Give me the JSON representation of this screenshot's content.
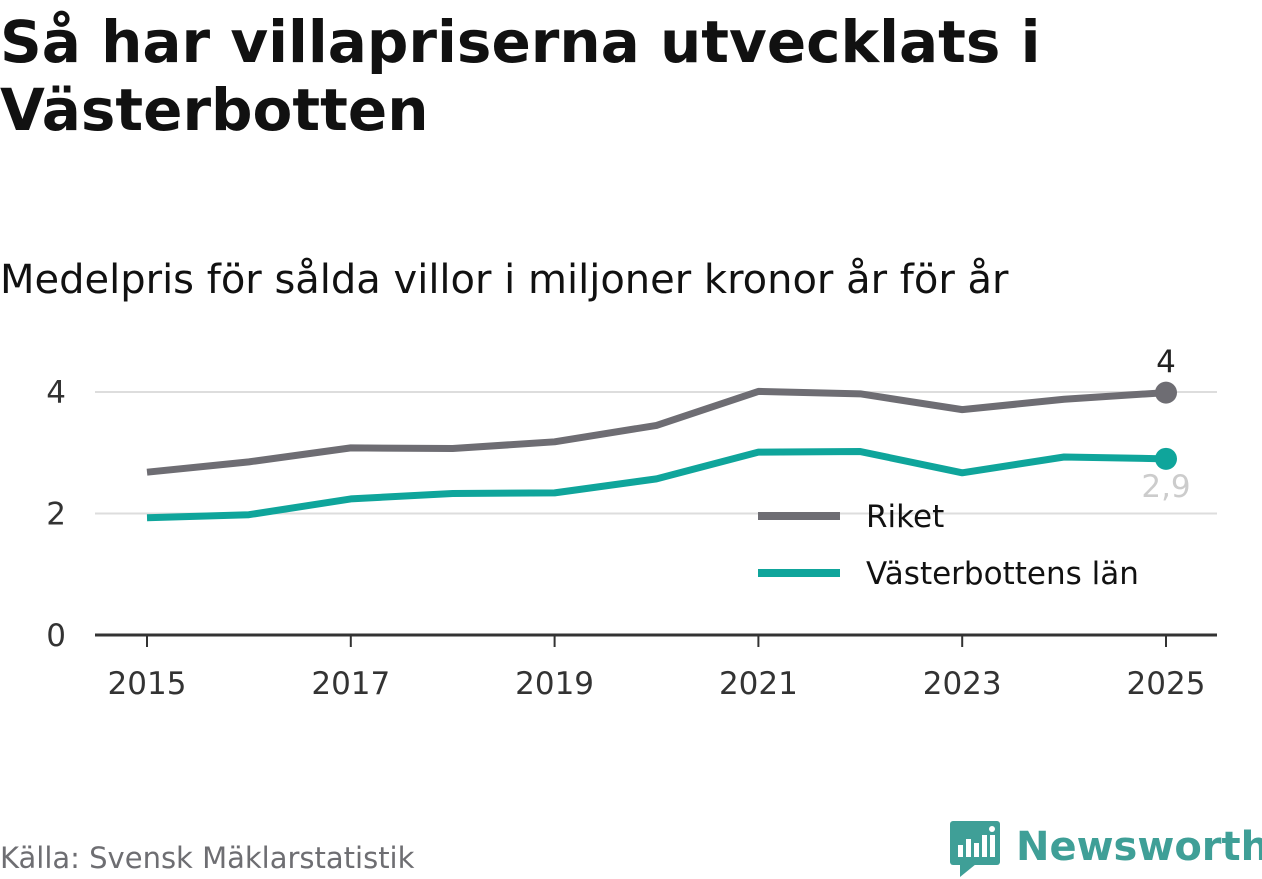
{
  "header": {
    "title": "Så har villapriserna utvecklats i Västerbotten",
    "subtitle": "Medelpris för sålda villor i miljoner kronor år för år"
  },
  "footer": {
    "source": "Källa: Svensk Mäklarstatistik",
    "brand": "Newsworthy"
  },
  "colors": {
    "riket": "#6e6d73",
    "lan": "#0fa59b",
    "grid": "#dddddd",
    "axis": "#333333",
    "brand": "#3f9f97"
  },
  "chart_data": {
    "type": "line",
    "x": [
      2015,
      2016,
      2017,
      2018,
      2019,
      2020,
      2021,
      2022,
      2023,
      2024,
      2025
    ],
    "x_ticks": [
      "2015",
      "2017",
      "2019",
      "2021",
      "2023",
      "2025"
    ],
    "y_ticks": [
      "0",
      "2",
      "4"
    ],
    "ylim": [
      0,
      4.4
    ],
    "grid": "horizontal",
    "legend_position": "bottom-right",
    "series": [
      {
        "name": "Riket",
        "color": "#6e6d73",
        "values": [
          2.68,
          2.85,
          3.08,
          3.07,
          3.18,
          3.45,
          4.01,
          3.97,
          3.71,
          3.88,
          3.99
        ],
        "end_label": "4"
      },
      {
        "name": "Västerbottens län",
        "color": "#0fa59b",
        "values": [
          1.93,
          1.98,
          2.24,
          2.33,
          2.34,
          2.57,
          3.01,
          3.02,
          2.67,
          2.93,
          2.9
        ],
        "end_label": "2,9"
      }
    ]
  }
}
